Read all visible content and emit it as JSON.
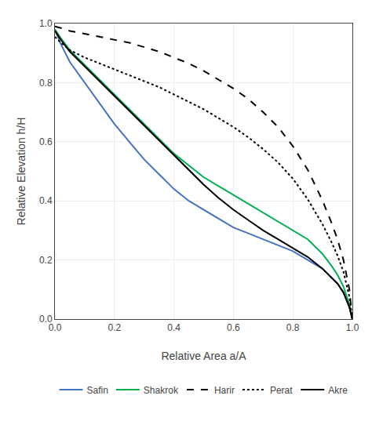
{
  "chart_data": {
    "type": "line",
    "xlabel": "Relative Area a/A",
    "ylabel": "Relative Elevation h/H",
    "xlim": [
      0,
      1
    ],
    "ylim": [
      0,
      1
    ],
    "xticks": [
      {
        "value": 0,
        "label": "0.0"
      },
      0.2,
      0.4,
      0.6,
      0.8,
      {
        "value": 1,
        "label": "1.0"
      }
    ],
    "yticks": [
      {
        "value": 0,
        "label": "0.0"
      },
      0.2,
      0.4,
      0.6,
      0.8,
      {
        "value": 1,
        "label": "1.0"
      }
    ],
    "grid": true,
    "legend": "bottom",
    "x": [
      0.0,
      0.02,
      0.05,
      0.1,
      0.15,
      0.2,
      0.25,
      0.3,
      0.35,
      0.4,
      0.45,
      0.5,
      0.55,
      0.6,
      0.65,
      0.7,
      0.75,
      0.8,
      0.85,
      0.9,
      0.93,
      0.95,
      0.97,
      0.99,
      1.0
    ],
    "series": [
      {
        "name": "Safin",
        "color": "#4472C4",
        "line_style": "solid",
        "values": [
          0.98,
          0.93,
          0.87,
          0.8,
          0.73,
          0.66,
          0.6,
          0.54,
          0.49,
          0.44,
          0.4,
          0.37,
          0.34,
          0.31,
          0.29,
          0.27,
          0.25,
          0.23,
          0.2,
          0.17,
          0.14,
          0.12,
          0.09,
          0.04,
          0.0
        ]
      },
      {
        "name": "Shakrok",
        "color": "#00B050",
        "line_style": "solid",
        "values": [
          0.98,
          0.95,
          0.91,
          0.86,
          0.81,
          0.76,
          0.71,
          0.66,
          0.61,
          0.56,
          0.52,
          0.48,
          0.45,
          0.42,
          0.39,
          0.36,
          0.33,
          0.3,
          0.27,
          0.22,
          0.18,
          0.15,
          0.11,
          0.05,
          0.0
        ]
      },
      {
        "name": "Harir",
        "color": "#000000",
        "line_style": "dashed",
        "values": [
          0.99,
          0.985,
          0.975,
          0.965,
          0.955,
          0.945,
          0.935,
          0.92,
          0.905,
          0.885,
          0.865,
          0.84,
          0.81,
          0.78,
          0.745,
          0.7,
          0.65,
          0.585,
          0.505,
          0.4,
          0.325,
          0.27,
          0.2,
          0.1,
          0.0
        ]
      },
      {
        "name": "Perat",
        "color": "#000000",
        "line_style": "dotted",
        "values": [
          0.955,
          0.935,
          0.91,
          0.885,
          0.865,
          0.845,
          0.825,
          0.805,
          0.785,
          0.76,
          0.735,
          0.71,
          0.68,
          0.65,
          0.615,
          0.575,
          0.53,
          0.475,
          0.405,
          0.32,
          0.26,
          0.215,
          0.16,
          0.075,
          0.0
        ]
      },
      {
        "name": "Akre",
        "color": "#000000",
        "line_style": "solid",
        "values": [
          0.975,
          0.945,
          0.905,
          0.855,
          0.805,
          0.755,
          0.705,
          0.655,
          0.605,
          0.555,
          0.505,
          0.455,
          0.41,
          0.37,
          0.335,
          0.3,
          0.27,
          0.24,
          0.21,
          0.17,
          0.14,
          0.12,
          0.09,
          0.04,
          0.0
        ]
      }
    ]
  }
}
